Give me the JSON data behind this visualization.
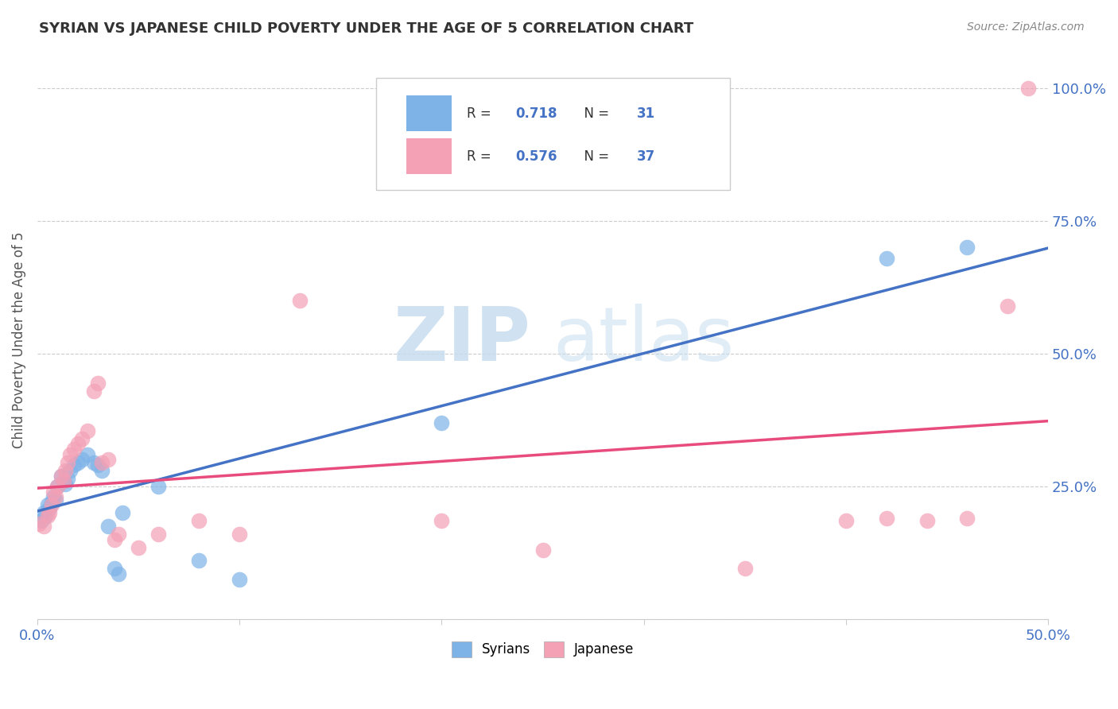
{
  "title": "SYRIAN VS JAPANESE CHILD POVERTY UNDER THE AGE OF 5 CORRELATION CHART",
  "source": "Source: ZipAtlas.com",
  "xlabel": "",
  "ylabel": "Child Poverty Under the Age of 5",
  "xlim": [
    0.0,
    0.5
  ],
  "ylim": [
    0.0,
    1.05
  ],
  "syrians_color": "#7EB3E8",
  "japanese_color": "#F4A0B5",
  "syrians_line_color": "#4472C4",
  "japanese_line_color": "#E84C7D",
  "R_syrians": 0.718,
  "N_syrians": 31,
  "R_japanese": 0.576,
  "N_japanese": 37,
  "syrians_x": [
    0.002,
    0.003,
    0.004,
    0.005,
    0.006,
    0.007,
    0.008,
    0.009,
    0.01,
    0.012,
    0.013,
    0.014,
    0.015,
    0.016,
    0.018,
    0.02,
    0.022,
    0.025,
    0.028,
    0.03,
    0.032,
    0.035,
    0.038,
    0.04,
    0.042,
    0.06,
    0.08,
    0.1,
    0.2,
    0.42,
    0.46
  ],
  "syrians_y": [
    0.185,
    0.2,
    0.195,
    0.215,
    0.21,
    0.22,
    0.23,
    0.225,
    0.25,
    0.27,
    0.26,
    0.255,
    0.265,
    0.28,
    0.29,
    0.295,
    0.3,
    0.31,
    0.295,
    0.29,
    0.28,
    0.175,
    0.095,
    0.085,
    0.2,
    0.25,
    0.11,
    0.075,
    0.37,
    0.68,
    0.7
  ],
  "japanese_x": [
    0.001,
    0.003,
    0.005,
    0.006,
    0.007,
    0.008,
    0.009,
    0.01,
    0.012,
    0.013,
    0.014,
    0.015,
    0.016,
    0.018,
    0.02,
    0.022,
    0.025,
    0.028,
    0.03,
    0.032,
    0.035,
    0.038,
    0.04,
    0.05,
    0.06,
    0.08,
    0.1,
    0.13,
    0.2,
    0.25,
    0.35,
    0.4,
    0.42,
    0.44,
    0.46,
    0.48,
    0.49
  ],
  "japanese_y": [
    0.18,
    0.175,
    0.195,
    0.2,
    0.215,
    0.24,
    0.23,
    0.25,
    0.27,
    0.26,
    0.28,
    0.295,
    0.31,
    0.32,
    0.33,
    0.34,
    0.355,
    0.43,
    0.445,
    0.295,
    0.3,
    0.15,
    0.16,
    0.135,
    0.16,
    0.185,
    0.16,
    0.6,
    0.185,
    0.13,
    0.095,
    0.185,
    0.19,
    0.185,
    0.19,
    0.59,
    1.0
  ],
  "background_color": "#FFFFFF",
  "grid_color": "#CCCCCC",
  "watermark_zip_color": "#C8DDEF",
  "watermark_atlas_color": "#C8DDEF"
}
